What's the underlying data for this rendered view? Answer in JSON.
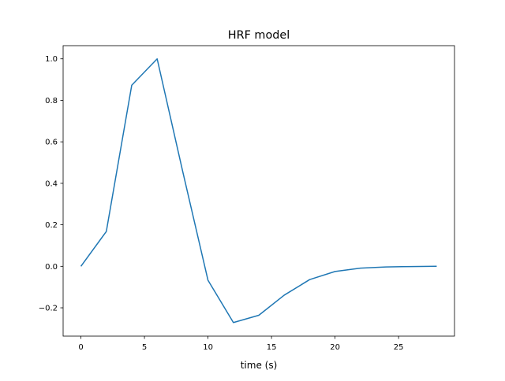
{
  "chart_data": {
    "type": "line",
    "title": "HRF model",
    "xlabel": "time (s)",
    "ylabel": "",
    "xlim": [
      -1.4,
      29.4
    ],
    "ylim": [
      -0.3365,
      1.0635
    ],
    "x_ticks": [
      0,
      5,
      10,
      15,
      20,
      25
    ],
    "y_ticks": [
      -0.2,
      0.0,
      0.2,
      0.4,
      0.6,
      0.8,
      1.0
    ],
    "y_tick_labels": [
      "−0.2",
      "0.0",
      "0.2",
      "0.4",
      "0.6",
      "0.8",
      "1.0"
    ],
    "grid": false,
    "legend": "none",
    "series": [
      {
        "color": "#1f77b4",
        "x": [
          0,
          2,
          4,
          6,
          8,
          10,
          12,
          14,
          16,
          18,
          20,
          22,
          24,
          26,
          28
        ],
        "y": [
          0.0,
          0.168,
          0.873,
          1.0,
          0.46,
          -0.067,
          -0.271,
          -0.236,
          -0.139,
          -0.064,
          -0.025,
          -0.009,
          -0.003,
          -0.001,
          0.0
        ]
      }
    ]
  }
}
